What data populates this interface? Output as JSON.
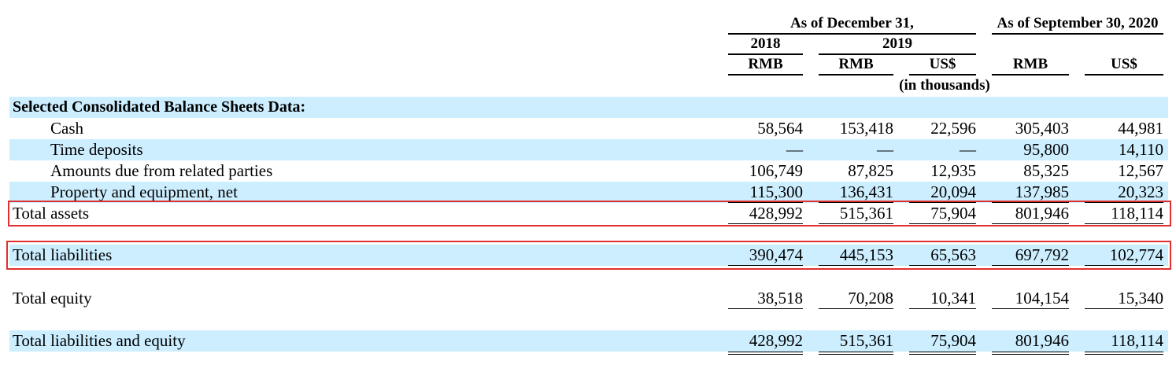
{
  "header": {
    "group1": "As of December 31,",
    "group2": "As of September 30, 2020",
    "years": [
      "2018",
      "2019"
    ],
    "currencies": [
      "RMB",
      "RMB",
      "US$",
      "RMB",
      "US$"
    ],
    "units": "(in thousands)"
  },
  "table": {
    "section": "Selected Consolidated Balance Sheets Data:",
    "rows": [
      {
        "label": "Cash",
        "values": [
          "58,564",
          "153,418",
          "22,596",
          "305,403",
          "44,981"
        ]
      },
      {
        "label": "Time deposits",
        "values": [
          "—",
          "—",
          "—",
          "95,800",
          "14,110"
        ]
      },
      {
        "label": "Amounts due from related parties",
        "values": [
          "106,749",
          "87,825",
          "12,935",
          "85,325",
          "12,567"
        ]
      },
      {
        "label": "Property and equipment, net",
        "values": [
          "115,300",
          "136,431",
          "20,094",
          "137,985",
          "20,323"
        ]
      },
      {
        "label": "Total assets",
        "values": [
          "428,992",
          "515,361",
          "75,904",
          "801,946",
          "118,114"
        ]
      },
      {
        "label": "Total liabilities",
        "values": [
          "390,474",
          "445,153",
          "65,563",
          "697,792",
          "102,774"
        ]
      },
      {
        "label": "Total equity",
        "values": [
          "38,518",
          "70,208",
          "10,341",
          "104,154",
          "15,340"
        ]
      },
      {
        "label": "Total liabilities and equity",
        "values": [
          "428,992",
          "515,361",
          "75,904",
          "801,946",
          "118,114"
        ]
      }
    ]
  }
}
